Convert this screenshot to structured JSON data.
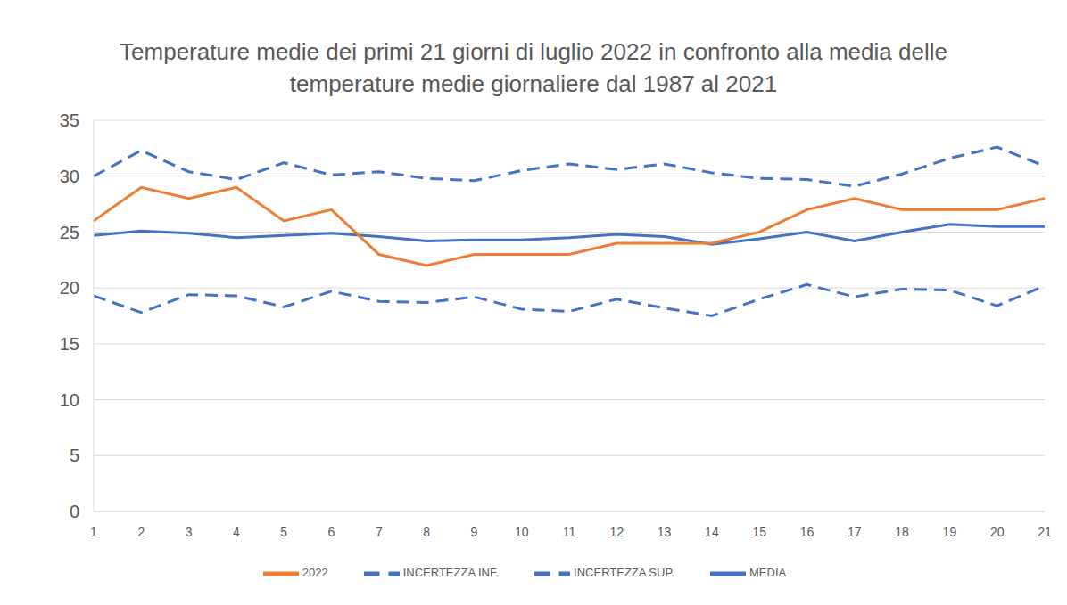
{
  "chart_data": {
    "type": "line",
    "title": "Temperature medie dei primi 21 giorni di luglio 2022 in confronto alla media delle temperature medie giornaliere dal 1987 al 2021",
    "categories": [
      "1",
      "2",
      "3",
      "4",
      "5",
      "6",
      "7",
      "8",
      "9",
      "10",
      "11",
      "12",
      "13",
      "14",
      "15",
      "16",
      "17",
      "18",
      "19",
      "20",
      "21"
    ],
    "series": [
      {
        "name": "MEDIA",
        "color": "#4472c4",
        "line_style": "solid",
        "marker": "none",
        "values": [
          24.7,
          25.1,
          24.9,
          24.5,
          24.7,
          24.9,
          24.6,
          24.2,
          24.3,
          24.3,
          24.5,
          24.8,
          24.6,
          23.9,
          24.4,
          25.0,
          24.2,
          25.0,
          25.7,
          25.5,
          25.5
        ]
      },
      {
        "name": "2022",
        "color": "#ed7d31",
        "line_style": "solid",
        "marker": "none",
        "values": [
          26,
          29,
          28,
          29,
          26,
          27,
          23,
          22,
          23,
          23,
          23,
          24,
          24,
          24,
          25,
          27,
          28,
          27,
          27,
          27,
          28
        ]
      },
      {
        "name": "INCERTEZZA SUP.",
        "color": "#4472c4",
        "line_style": "dashed",
        "marker": "none",
        "values": [
          30.0,
          32.3,
          30.4,
          29.7,
          31.2,
          30.1,
          30.4,
          29.8,
          29.6,
          30.5,
          31.1,
          30.6,
          31.1,
          30.3,
          29.8,
          29.7,
          29.1,
          30.2,
          31.6,
          32.6,
          30.9
        ]
      },
      {
        "name": "INCERTEZZA INF.",
        "color": "#4472c4",
        "line_style": "dashed",
        "marker": "none",
        "values": [
          19.3,
          17.8,
          19.4,
          19.3,
          18.3,
          19.7,
          18.8,
          18.7,
          19.2,
          18.1,
          17.9,
          19.0,
          18.2,
          17.5,
          19.0,
          20.3,
          19.2,
          19.9,
          19.8,
          18.4,
          20.2
        ]
      }
    ],
    "ylim": [
      0,
      35
    ],
    "yticks": [
      0,
      5,
      10,
      15,
      20,
      25,
      30,
      35
    ],
    "grid": true,
    "legend": "bottom"
  }
}
